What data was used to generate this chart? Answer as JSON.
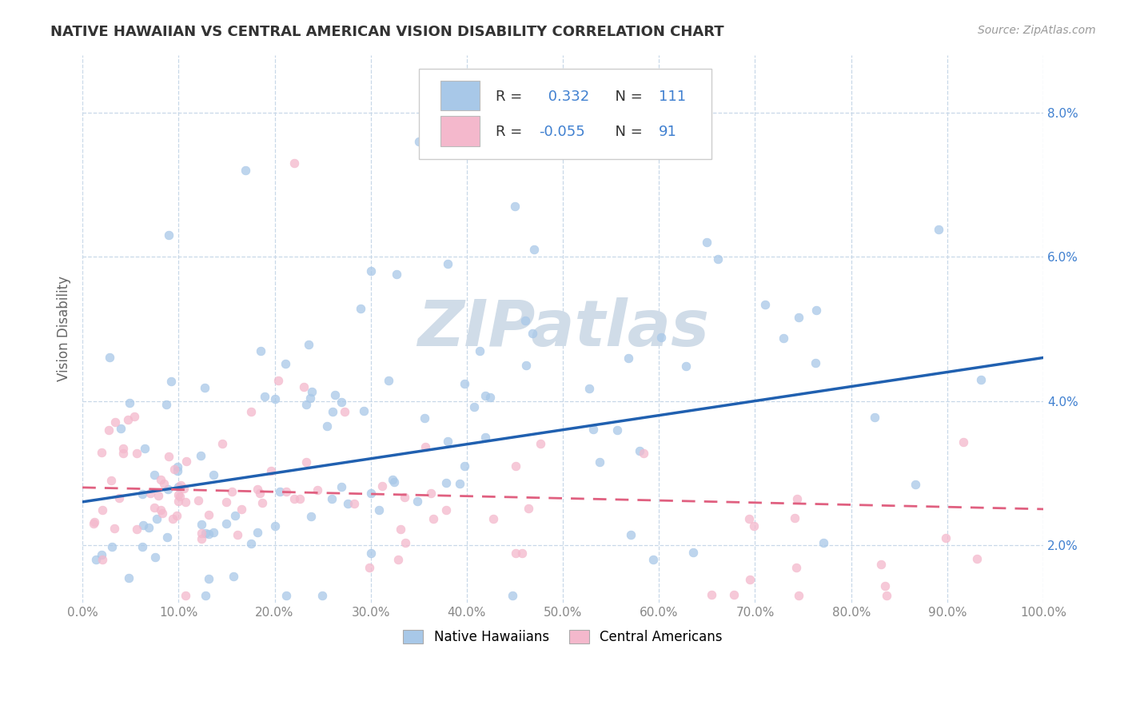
{
  "title": "NATIVE HAWAIIAN VS CENTRAL AMERICAN VISION DISABILITY CORRELATION CHART",
  "source": "Source: ZipAtlas.com",
  "ylabel": "Vision Disability",
  "legend_labels": [
    "Native Hawaiians",
    "Central Americans"
  ],
  "r_values": [
    0.332,
    -0.055
  ],
  "n_values": [
    111,
    91
  ],
  "blue_scatter_color": "#a8c8e8",
  "pink_scatter_color": "#f4b8cc",
  "blue_line_color": "#2060b0",
  "pink_line_color": "#e06080",
  "value_color": "#4080d0",
  "watermark_color": "#d0dce8",
  "background_color": "#ffffff",
  "grid_color": "#c8d8e8",
  "xmin": 0.0,
  "xmax": 1.0,
  "ymin": 0.012,
  "ymax": 0.088,
  "blue_line_y0": 0.026,
  "blue_line_y1": 0.046,
  "pink_line_y0": 0.028,
  "pink_line_y1": 0.025,
  "yticks": [
    0.02,
    0.04,
    0.06,
    0.08
  ],
  "xticks": [
    0.0,
    0.1,
    0.2,
    0.3,
    0.4,
    0.5,
    0.6,
    0.7,
    0.8,
    0.9,
    1.0
  ]
}
